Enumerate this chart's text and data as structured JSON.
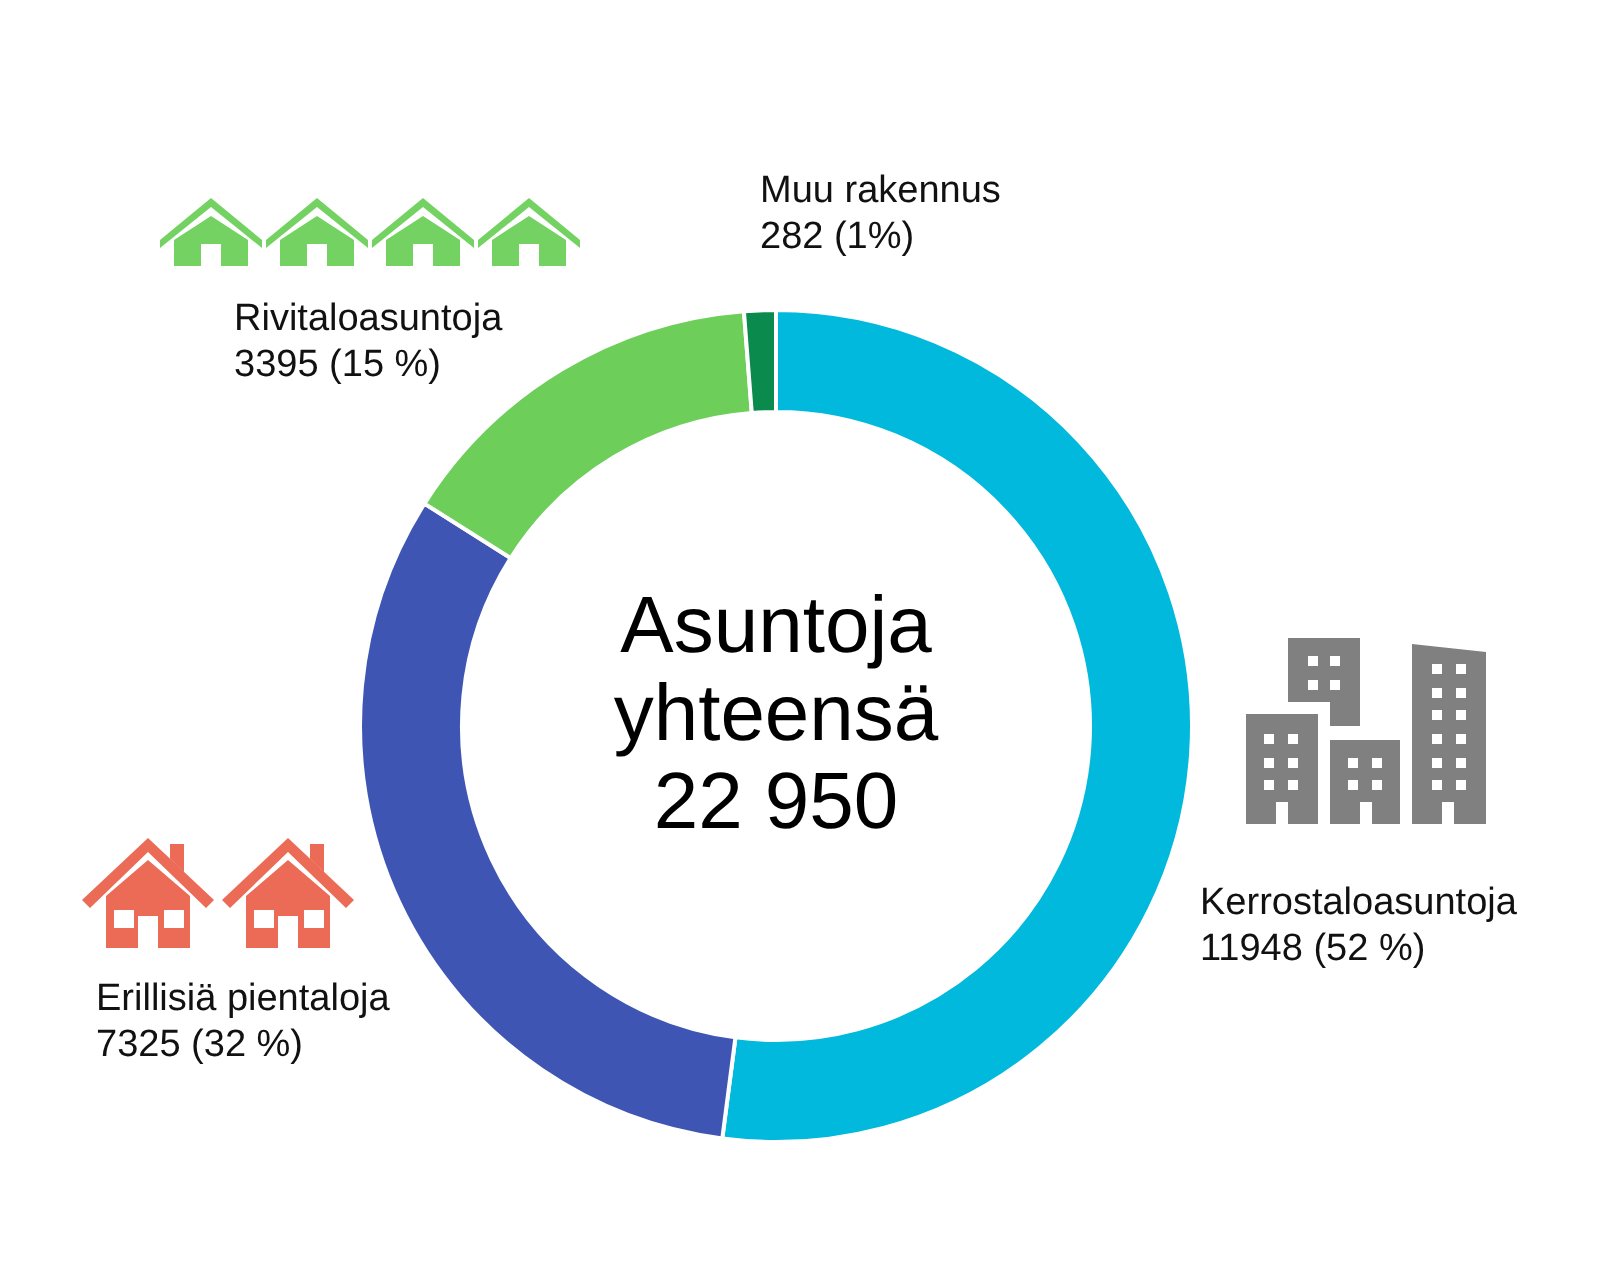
{
  "chart_data": {
    "type": "donut",
    "title": "Asuntoja yhteensä 22 950",
    "categories": [
      "Kerrostaloasuntoja",
      "Erillisiä pientaloja",
      "Rivitaloasuntoja",
      "Muu rakennus"
    ],
    "values": [
      11948,
      7325,
      3395,
      282
    ],
    "value_labels": [
      "11948 (52 %)",
      "7325 (32 %)",
      "3395 (15 %)",
      "282 (1%)"
    ],
    "colors": [
      "#00b9dc",
      "#3f55b4",
      "#6dcf5a",
      "#0a8a4c"
    ]
  }
}
